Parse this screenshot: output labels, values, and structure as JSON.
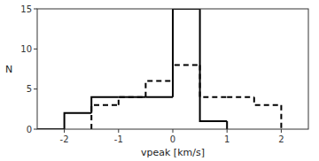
{
  "chart_data": {
    "type": "histogram",
    "xlabel": "vpeak [km/s]",
    "ylabel": "N",
    "series": [
      {
        "bins": [
          -2.5,
          -2.0,
          -1.5,
          -1.0,
          -0.5,
          0.0,
          0.5,
          1.0
        ],
        "values": [
          0,
          2,
          4,
          4,
          4,
          15,
          1
        ],
        "color": "#000000",
        "line_style": "solid"
      },
      {
        "bins": [
          -1.5,
          -1.0,
          -0.5,
          0.0,
          0.5,
          1.0,
          1.5,
          2.0
        ],
        "values": [
          3,
          4,
          6,
          8,
          4,
          4,
          3
        ],
        "color": "#000000",
        "line_style": "dashed"
      }
    ],
    "xlim": [
      -2.5,
      2.5
    ],
    "ylim": [
      0,
      15
    ],
    "xticks": [
      -2,
      -1,
      0,
      1,
      2
    ],
    "yticks": [
      0,
      5,
      10,
      15
    ],
    "grid": false
  }
}
